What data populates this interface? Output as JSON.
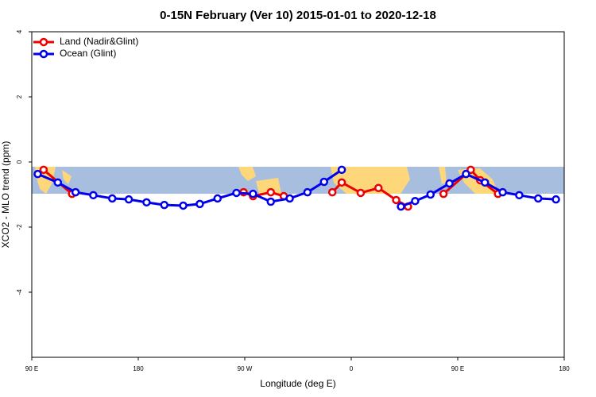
{
  "chart_data": {
    "type": "line",
    "title": "0-15N February (Ver 10)   2015-01-01 to 2020-12-18",
    "x_label": "Longitude (deg E)",
    "y_label": "XCO2 - MLO trend (ppm)",
    "xlim": [
      90,
      540
    ],
    "ylim": [
      -6,
      4
    ],
    "xticks": [
      {
        "value": 90,
        "label": "90 E"
      },
      180,
      {
        "value": 270,
        "label": "90 W"
      },
      {
        "value": 360,
        "label": "0"
      },
      {
        "value": 450,
        "label": "90 E"
      },
      {
        "value": 540,
        "label": "180"
      }
    ],
    "yticks": [
      -4,
      -2,
      0,
      2,
      4
    ],
    "legend": "top-left",
    "series": [
      {
        "name": "Land (Nadir&Glint)",
        "color": "#ee0000",
        "x": [
          100,
          124,
          null,
          269,
          277,
          292,
          303,
          null,
          344,
          352,
          368,
          383,
          398,
          408,
          null,
          438,
          461,
          469,
          484
        ],
        "values": [
          -0.24,
          -0.98,
          null,
          -0.93,
          -1.05,
          -0.93,
          -1.05,
          null,
          -0.93,
          -0.63,
          -0.95,
          -0.8,
          -1.17,
          -1.37,
          null,
          -0.98,
          -0.24,
          -0.56,
          -0.98
        ]
      },
      {
        "name": "Ocean (Glint)",
        "color": "#0000ee",
        "x": [
          95,
          112,
          127,
          142,
          158,
          172,
          187,
          202,
          218,
          232,
          247,
          263,
          277,
          292,
          308,
          323,
          337,
          352,
          null,
          402,
          414,
          427,
          443,
          457,
          473,
          488,
          502,
          518,
          533
        ],
        "values": [
          -0.37,
          -0.63,
          -0.93,
          -1.02,
          -1.12,
          -1.15,
          -1.24,
          -1.32,
          -1.34,
          -1.29,
          -1.12,
          -0.95,
          -0.98,
          -1.22,
          -1.12,
          -0.93,
          -0.61,
          -0.24,
          null,
          -1.37,
          -1.2,
          -1.0,
          -0.66,
          -0.37,
          -0.63,
          -0.93,
          -1.02,
          -1.12,
          -1.15
        ]
      }
    ]
  }
}
